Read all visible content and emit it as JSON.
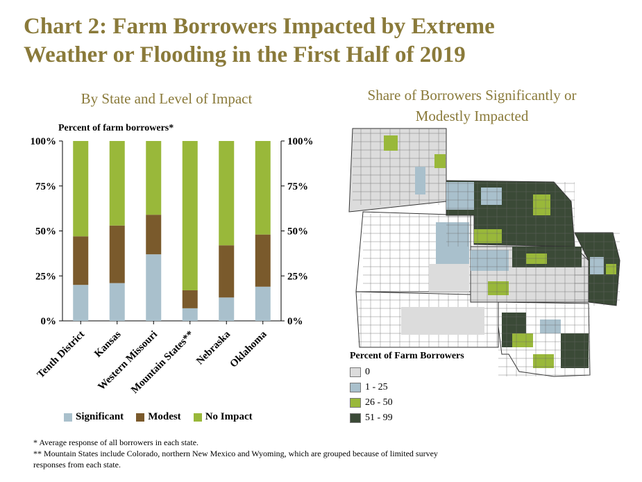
{
  "title_line1": "Chart 2: Farm Borrowers Impacted by Extreme",
  "title_line2": "Weather or Flooding in the First Half of 2019",
  "left_subtitle": "By State and Level of Impact",
  "right_subtitle_line1": "Share of Borrowers Significantly or",
  "right_subtitle_line2": "Modestly Impacted",
  "colors": {
    "significant": "#a9c0cc",
    "modest": "#7a5a2c",
    "no_impact": "#99b83a",
    "map_zero": "#dcdcdc",
    "map_1_25": "#a9c0cc",
    "map_26_50": "#99b83a",
    "map_51_99": "#3b4a37",
    "title": "#8a7a3a"
  },
  "chart_data": {
    "type": "bar",
    "stacked": true,
    "ylabel": "Percent of farm borrowers*",
    "ylim": [
      0,
      100
    ],
    "yticks": [
      "0%",
      "25%",
      "50%",
      "75%",
      "100%"
    ],
    "categories": [
      "Tenth District",
      "Kansas",
      "Western Missouri",
      "Mountain States**",
      "Nebraska",
      "Oklahoma"
    ],
    "series": [
      {
        "name": "Significant",
        "values": [
          20,
          21,
          37,
          7,
          13,
          19
        ]
      },
      {
        "name": "Modest",
        "values": [
          27,
          32,
          22,
          10,
          29,
          29
        ]
      },
      {
        "name": "No Impact",
        "values": [
          53,
          47,
          41,
          83,
          58,
          52
        ]
      }
    ],
    "legend_position": "bottom"
  },
  "map_legend": {
    "title": "Percent of Farm Borrowers",
    "items": [
      "0",
      "1 - 25",
      "26 - 50",
      "51 - 99"
    ]
  },
  "footnote1": "* Average response of all borrowers in each state.",
  "footnote2": "** Mountain States include Colorado, northern New Mexico and Wyoming, which are grouped because of limited survey",
  "footnote3": "responses from each state."
}
